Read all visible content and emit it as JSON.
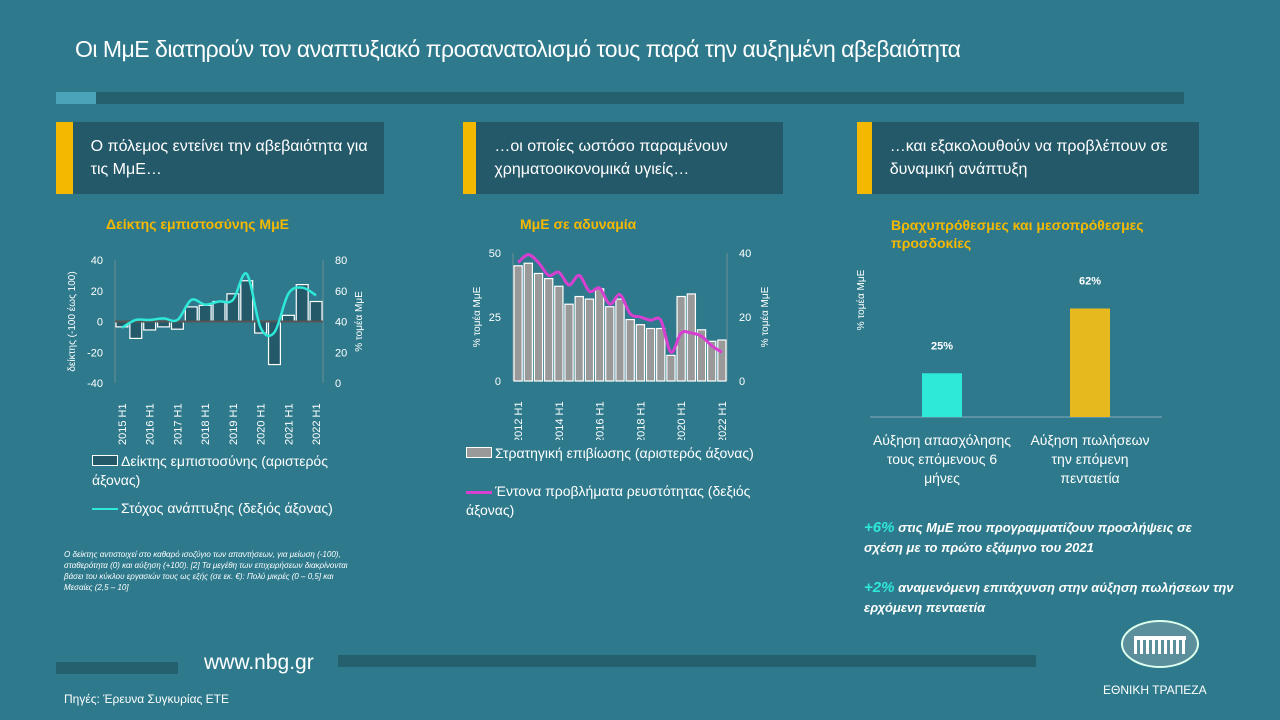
{
  "title": "Οι ΜμΕ διατηρούν τον αναπτυξιακό προσανατολισμό τους παρά την αυξημένη αβεβαιότητα",
  "panels": [
    "Ο πόλεμος εντείνει την αβεβαιότητα για τις ΜμΕ…",
    "…οι οποίες ωστόσο παραμένουν χρηματοοικονομικά υγιείς…",
    "…και εξακολουθούν να προβλέπουν σε δυναμική ανάπτυξη"
  ],
  "chart_data": [
    {
      "type": "bar",
      "title": "Δείκτης εμπιστοσύνης ΜμΕ",
      "ylabel": "δείκτης (-100 έως 100)",
      "y2label": "% τομέα ΜμΕ",
      "ylim": [
        -40,
        40
      ],
      "y2lim": [
        0,
        80
      ],
      "yticks": [
        "40",
        "20",
        "0",
        "-20",
        "-40"
      ],
      "y2ticks": [
        "80",
        "60",
        "40",
        "20",
        "0"
      ],
      "xticks": [
        "2015 H1",
        "2016 H1",
        "2017 H1",
        "2018 H1",
        "2019 H1",
        "2020 H1",
        "2021 H1",
        "2022 H1"
      ],
      "series": [
        {
          "name": "Δείκτης εμπιστοσύνης (αριστερός άξονας)",
          "type": "bar",
          "values": [
            -3.5,
            -11,
            -5.5,
            -3.5,
            -5,
            9.5,
            10.5,
            13,
            18,
            26.5,
            -7.5,
            -28,
            4,
            24,
            13
          ]
        },
        {
          "name": "Στόχος ανάπτυξης (δεξιός άξονας)",
          "type": "line",
          "color": "#2ee8d8",
          "values": [
            36,
            41,
            41,
            42,
            41,
            54,
            51,
            53,
            54,
            71,
            36,
            33,
            58,
            62,
            57
          ]
        }
      ]
    },
    {
      "type": "bar",
      "title": "ΜμΕ σε αδυναμία",
      "ylabel": "% τομέα ΜμΕ",
      "y2label": "% τομέα ΜμΕ",
      "ylim": [
        0,
        50
      ],
      "y2lim": [
        0,
        40
      ],
      "yticks": [
        "50",
        "25",
        "0"
      ],
      "y2ticks": [
        "40",
        "20",
        "0"
      ],
      "xticks": [
        "2012 H1",
        "2014 H1",
        "2016 H1",
        "2018 H1",
        "2020 H1",
        "2022 H1"
      ],
      "series": [
        {
          "name": "Στρατηγική επιβίωσης (αριστερός άξονας)",
          "type": "bar",
          "values": [
            45,
            46,
            42,
            40,
            37,
            30,
            33,
            32,
            36,
            29,
            32,
            24,
            22,
            20.5,
            20.5,
            10,
            33,
            34,
            20,
            15.5,
            16
          ]
        },
        {
          "name": "Έντονα προβλήματα ρευστότητας (δεξιός άξονας)",
          "type": "line",
          "color": "#d63fd0",
          "values": [
            37,
            39.5,
            37,
            33,
            34,
            30,
            33,
            28,
            29,
            24,
            27,
            21,
            20,
            19,
            19,
            9,
            15,
            15,
            14,
            11,
            9
          ]
        }
      ]
    },
    {
      "type": "bar",
      "title": "Βραχυπρόθεσμες και μεσοπρόθεσμες προσδοκίες",
      "ylabel": "% τομέα ΜμΕ",
      "categories": [
        "Αύξηση απασχόλησης τους επόμενους 6 μήνες",
        "Αύξηση πωλήσεων την επόμενη πενταετία"
      ],
      "values": [
        25,
        62
      ],
      "labels": [
        "25%",
        "62%"
      ],
      "colors": [
        "#2ee8d8",
        "#e6b91e"
      ]
    }
  ],
  "footnote": "Ο δείκτης αντιστοιχεί στο καθαρό ισοζύγιο των απαντήσεων, για μείωση (-100), σταθερότητα (0) και αύξηση (+100). [2] Τα μεγέθη των επιχειρήσεων διακρίνονται βάσει του κύκλου εργασιών τους ως εξής (σε εκ. €): Πολύ μικρές (0 – 0,5] και Μεσαίες (2,5 – 10]",
  "highlights": [
    {
      "value": "+6%",
      "text": "στις ΜμΕ που προγραμματίζουν προσλήψεις σε σχέση με το πρώτο εξάμηνο του 2021"
    },
    {
      "value": "+2%",
      "text": "αναμενόμενη επιτάχυνση στην αύξηση πωλήσεων την ερχόμενη πενταετία"
    }
  ],
  "url": "www.nbg.gr",
  "source": "Πηγές: Έρευνα Συγκυρίας ΕΤΕ",
  "logo_text": "ΕΘΝΙΚΗ ΤΡΑΠΕΖΑ"
}
